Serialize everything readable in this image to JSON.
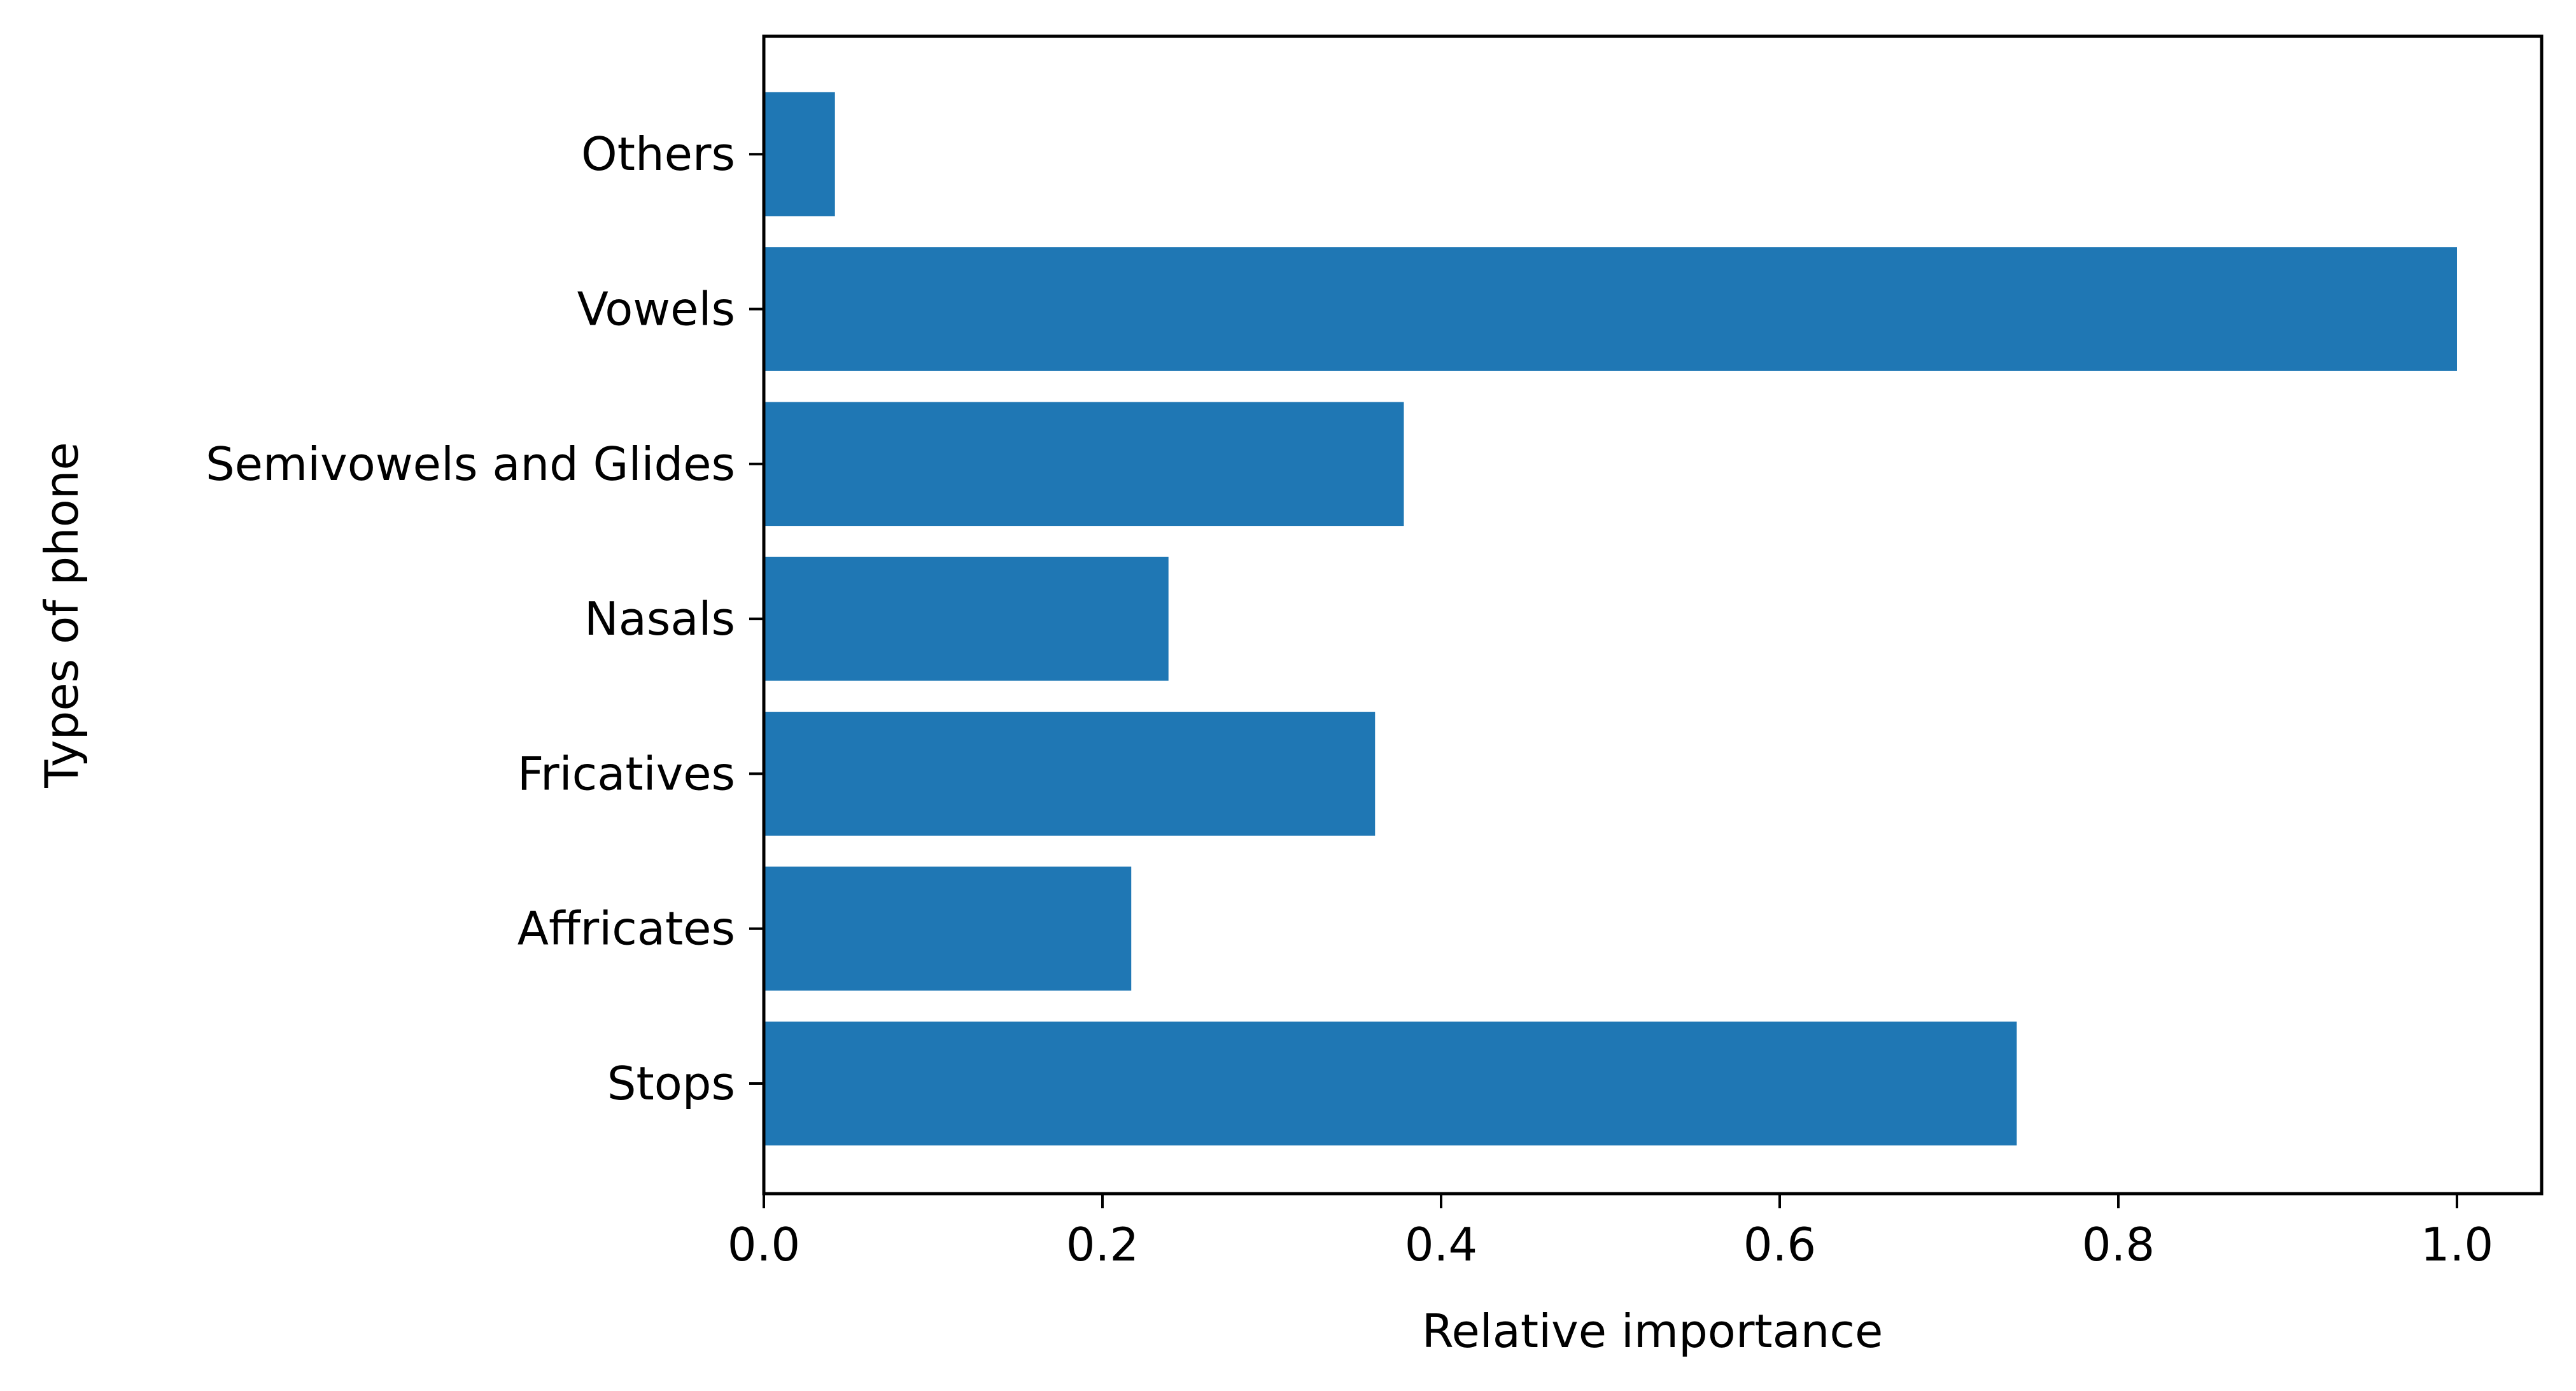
{
  "chart_data": {
    "type": "bar",
    "orientation": "horizontal",
    "title": "",
    "xlabel": "Relative importance",
    "ylabel": "Types of phone",
    "categories": [
      "Stops",
      "Affricates",
      "Fricatives",
      "Nasals",
      "Semivowels and Glides",
      "Vowels",
      "Others"
    ],
    "values": [
      0.74,
      0.217,
      0.361,
      0.239,
      0.378,
      1.0,
      0.042
    ],
    "xlim": [
      0.0,
      1.05
    ],
    "xticks": [
      "0.0",
      "0.2",
      "0.4",
      "0.6",
      "0.8",
      "1.0"
    ],
    "grid": false,
    "legend": false,
    "bar_color": "#1f77b4"
  }
}
